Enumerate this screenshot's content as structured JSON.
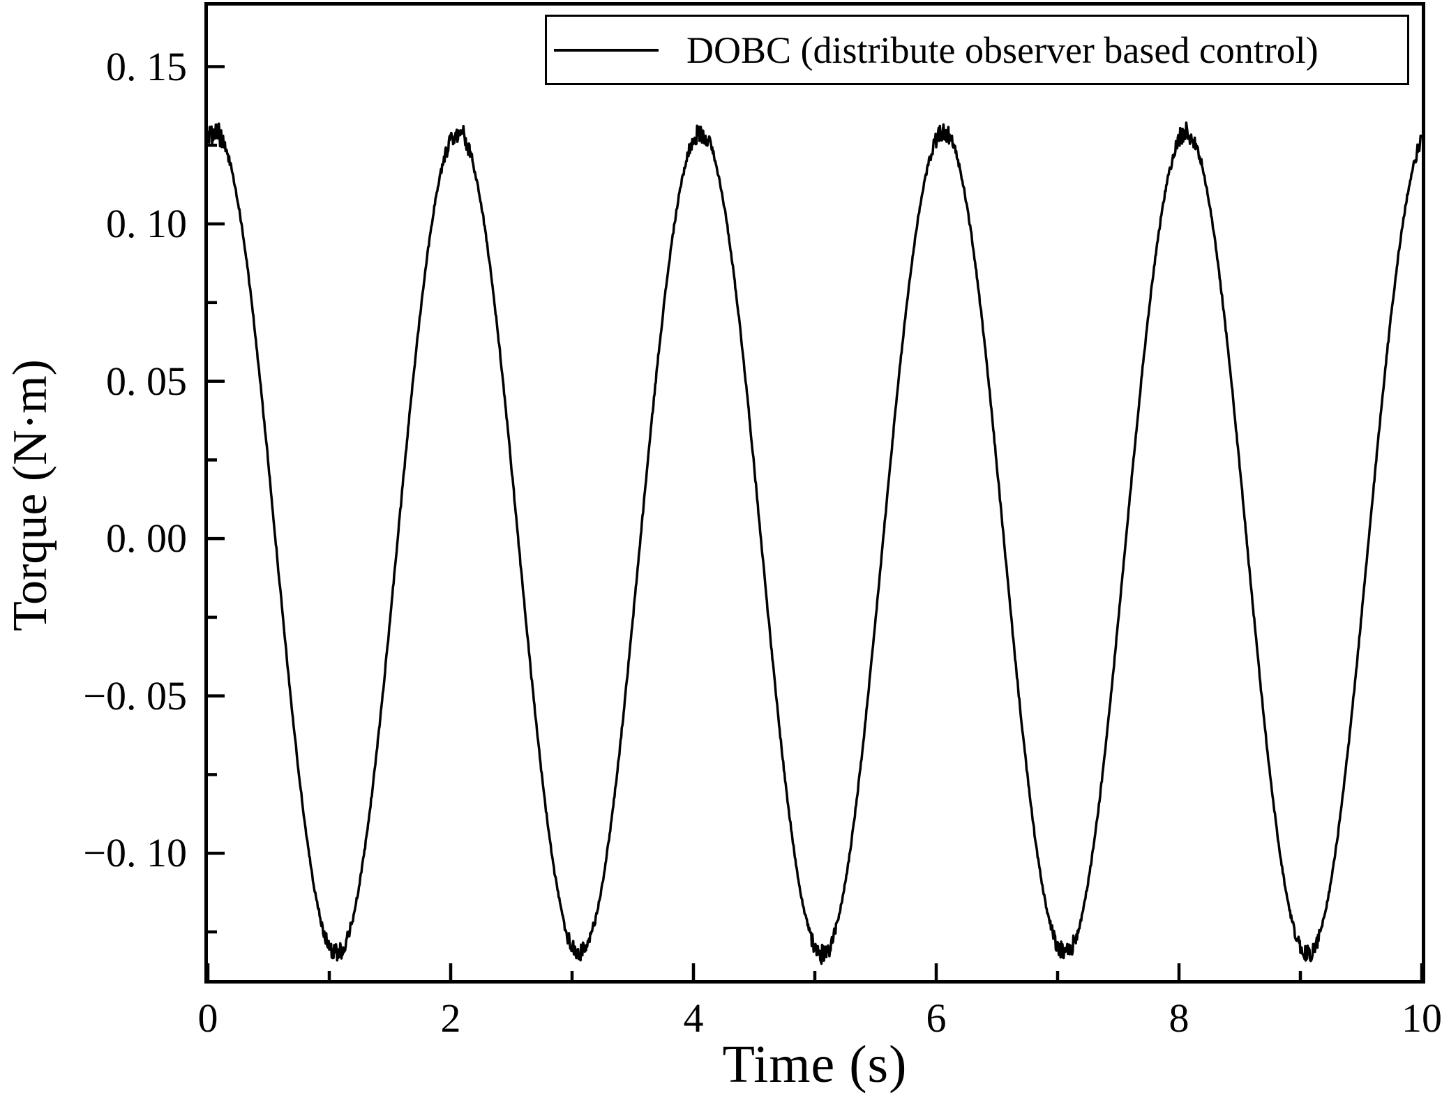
{
  "figure": {
    "background_color": "#ffffff",
    "frame_color": "#000000"
  },
  "chart_data": {
    "type": "line",
    "title": "",
    "xlabel": "Time (s)",
    "ylabel": "Torque (N·m)",
    "grid": false,
    "legend": {
      "position": "top-center-inside",
      "entries": [
        {
          "label": "DOBC (distribute observer based control)",
          "color": "#000000",
          "line_style": "solid"
        }
      ]
    },
    "x_range": [
      0,
      10
    ],
    "y_range": [
      -0.1403,
      0.1694
    ],
    "x_ticks": {
      "major": [
        0,
        2,
        4,
        6,
        8,
        10
      ],
      "minor": [
        1,
        3,
        5,
        7,
        9
      ],
      "labels": [
        "0",
        "2",
        "4",
        "6",
        "8",
        "10"
      ]
    },
    "y_ticks": {
      "major": [
        0.15,
        0.1,
        0.05,
        0.0,
        -0.05,
        -0.1
      ],
      "minor": [
        0.125,
        0.075,
        0.025,
        -0.025,
        -0.075,
        -0.125
      ],
      "labels": [
        "0. 15",
        "0. 10",
        "0. 05",
        "0. 00",
        "−0. 05",
        "−0. 10"
      ]
    },
    "series": [
      {
        "name": "DOBC (distribute observer based control)",
        "color": "#000000",
        "waveform": {
          "shape": "cosine",
          "amplitude_Nm": 0.1305,
          "offset_Nm": -0.0015,
          "period_s": 2.0,
          "peak_time_s": 0.06,
          "noise_base_Nm": 0.0007,
          "noise_extreme_Nm": 0.003,
          "noise_extreme_threshold": 0.88,
          "seed": 987654321,
          "sample_step_s": 0.005
        },
        "samples": {
          "t_s": [
            0,
            0.5,
            1.0,
            1.5,
            2.0,
            2.5,
            3.0,
            3.5,
            4.0,
            4.5,
            5.0,
            5.5,
            6.0,
            6.5,
            7.0,
            7.5,
            8.0,
            8.5,
            9.0,
            9.5,
            10.0
          ],
          "torque_Nm": [
            0.127,
            0.023,
            -0.13,
            -0.026,
            0.127,
            0.023,
            -0.13,
            -0.026,
            0.127,
            0.023,
            -0.13,
            -0.026,
            0.127,
            0.023,
            -0.13,
            -0.026,
            0.127,
            0.023,
            -0.13,
            -0.026,
            0.127
          ]
        }
      }
    ]
  }
}
